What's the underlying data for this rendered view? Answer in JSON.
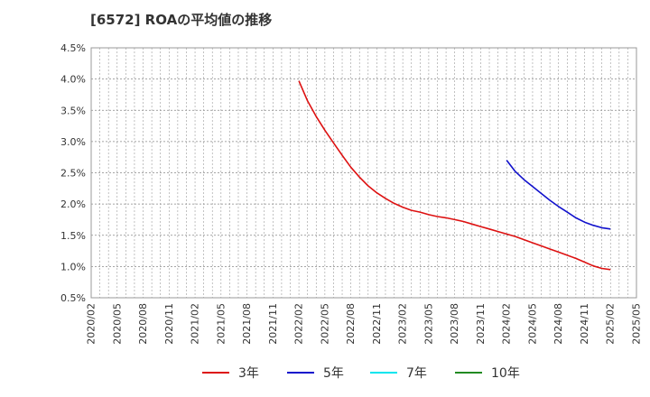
{
  "chart_data": {
    "type": "line",
    "title": "[6572]  ROAの平均値の推移",
    "xlabel": "",
    "ylabel": "",
    "ylim": [
      0.5,
      4.5
    ],
    "y_ticks": [
      0.5,
      1.0,
      1.5,
      2.0,
      2.5,
      3.0,
      3.5,
      4.0,
      4.5
    ],
    "y_tick_labels": [
      "0.5%",
      "1.0%",
      "1.5%",
      "2.0%",
      "2.5%",
      "3.0%",
      "3.5%",
      "4.0%",
      "4.5%"
    ],
    "x_tick_labels": [
      "2020/02",
      "2020/05",
      "2020/08",
      "2020/11",
      "2021/02",
      "2021/05",
      "2021/08",
      "2021/11",
      "2022/02",
      "2022/05",
      "2022/08",
      "2022/11",
      "2023/02",
      "2023/05",
      "2023/08",
      "2023/11",
      "2024/02",
      "2024/05",
      "2024/08",
      "2024/11",
      "2025/02",
      "2025/05"
    ],
    "grid": true,
    "legend_position": "bottom",
    "series": [
      {
        "name": "3年",
        "color": "#dd1111",
        "x": [
          "2022/02",
          "2022/03",
          "2022/04",
          "2022/05",
          "2022/06",
          "2022/07",
          "2022/08",
          "2022/09",
          "2022/10",
          "2022/11",
          "2022/12",
          "2023/01",
          "2023/02",
          "2023/03",
          "2023/04",
          "2023/05",
          "2023/06",
          "2023/07",
          "2023/08",
          "2023/09",
          "2023/10",
          "2023/11",
          "2023/12",
          "2024/01",
          "2024/02",
          "2024/03",
          "2024/04",
          "2024/05",
          "2024/06",
          "2024/07",
          "2024/08",
          "2024/09",
          "2024/10",
          "2024/11",
          "2024/12",
          "2025/01",
          "2025/02"
        ],
        "values": [
          3.97,
          3.65,
          3.4,
          3.18,
          2.98,
          2.78,
          2.59,
          2.43,
          2.29,
          2.18,
          2.09,
          2.01,
          1.95,
          1.9,
          1.87,
          1.83,
          1.8,
          1.78,
          1.75,
          1.72,
          1.68,
          1.64,
          1.6,
          1.56,
          1.52,
          1.48,
          1.43,
          1.38,
          1.33,
          1.28,
          1.23,
          1.18,
          1.13,
          1.07,
          1.01,
          0.97,
          0.95
        ]
      },
      {
        "name": "5年",
        "color": "#1111cc",
        "x": [
          "2024/02",
          "2024/03",
          "2024/04",
          "2024/05",
          "2024/06",
          "2024/07",
          "2024/08",
          "2024/09",
          "2024/10",
          "2024/11",
          "2024/12",
          "2025/01",
          "2025/02"
        ],
        "values": [
          2.7,
          2.52,
          2.39,
          2.28,
          2.17,
          2.06,
          1.96,
          1.87,
          1.78,
          1.71,
          1.66,
          1.62,
          1.6
        ]
      },
      {
        "name": "7年",
        "color": "#00e5ee",
        "x": [],
        "values": []
      },
      {
        "name": "10年",
        "color": "#228b22",
        "x": [],
        "values": []
      }
    ]
  }
}
